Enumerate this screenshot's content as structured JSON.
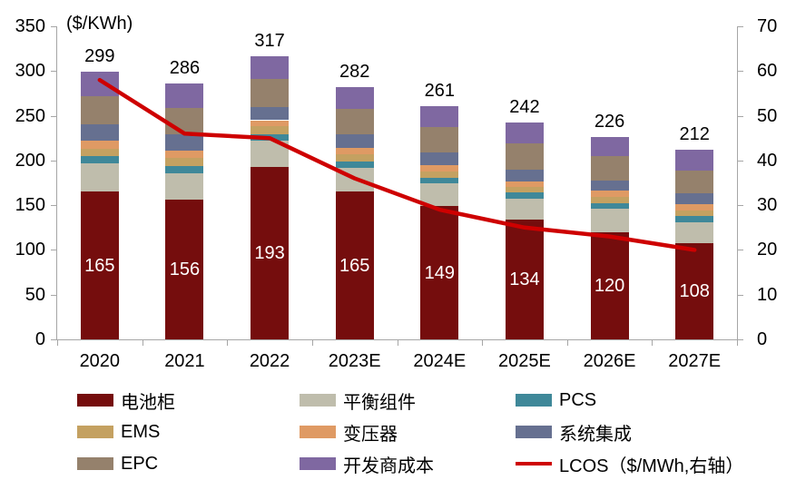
{
  "chart_data": {
    "type": "bar",
    "stacked": true,
    "title": "($/KWh)",
    "grid": false,
    "legend_position": "bottom",
    "categories": [
      "2020",
      "2021",
      "2022",
      "2023E",
      "2024E",
      "2025E",
      "2026E",
      "2027E"
    ],
    "bar_totals": [
      299,
      286,
      317,
      282,
      261,
      242,
      226,
      212
    ],
    "series": [
      {
        "id": "battery-cabinet",
        "name": "电池柜",
        "color": "#750d0d",
        "values": [
          165,
          156,
          193,
          165,
          149,
          134,
          120,
          108
        ],
        "show_value_labels": true,
        "label_color": "#ffffff"
      },
      {
        "id": "balance-of-plant",
        "name": "平衡组件",
        "color": "#bfbdac",
        "values": [
          32,
          30,
          29,
          27,
          25,
          23,
          26,
          23
        ]
      },
      {
        "id": "pcs",
        "name": "PCS",
        "color": "#3f8899",
        "values": [
          8,
          8,
          7,
          7,
          7,
          7,
          6,
          7
        ]
      },
      {
        "id": "ems",
        "name": "EMS",
        "color": "#c4a161",
        "values": [
          8,
          9,
          9,
          8,
          7,
          6,
          7,
          6
        ]
      },
      {
        "id": "transformer",
        "name": "变压器",
        "color": "#df9a64",
        "values": [
          9,
          8,
          7,
          7,
          7,
          7,
          7,
          7
        ]
      },
      {
        "id": "system-integration",
        "name": "系统集成",
        "color": "#667090",
        "values": [
          18,
          18,
          15,
          15,
          14,
          13,
          12,
          12
        ]
      },
      {
        "id": "epc",
        "name": "EPC",
        "color": "#95816c",
        "values": [
          32,
          30,
          31,
          29,
          28,
          29,
          27,
          26
        ]
      },
      {
        "id": "developer-cost",
        "name": "开发商成本",
        "color": "#7f68a1",
        "values": [
          27,
          27,
          26,
          24,
          24,
          23,
          21,
          23
        ]
      }
    ],
    "line_series": {
      "id": "lcos",
      "name": "LCOS（$/MWh,右轴）",
      "color": "#ce0000",
      "axis": "right",
      "values": [
        58,
        46,
        45,
        36,
        29,
        25,
        23,
        20
      ]
    },
    "left_axis": {
      "min": 0,
      "max": 350,
      "ticks": [
        0,
        50,
        100,
        150,
        200,
        250,
        300,
        350
      ]
    },
    "right_axis": {
      "min": 0,
      "max": 70,
      "ticks": [
        0,
        10,
        20,
        30,
        40,
        50,
        60,
        70
      ]
    }
  }
}
